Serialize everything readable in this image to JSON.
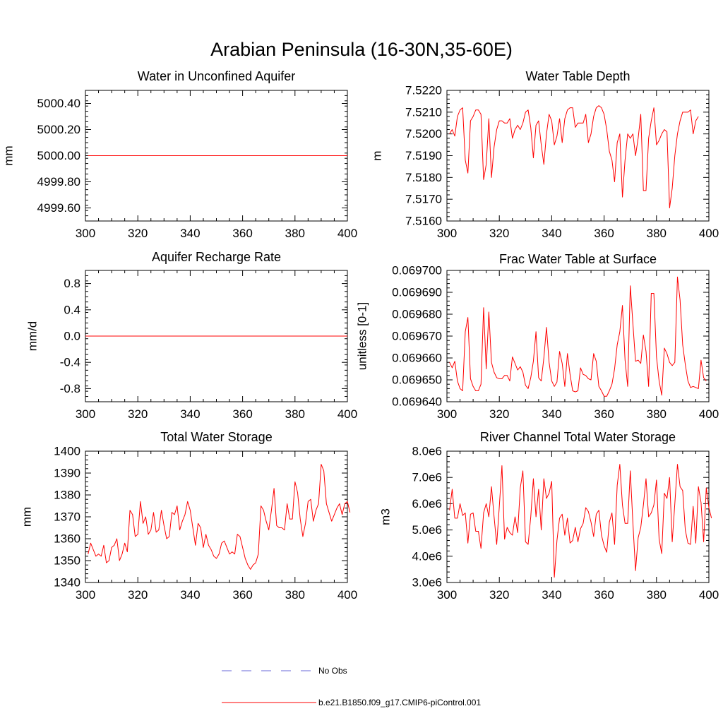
{
  "title": "Arabian Peninsula (16-30N,35-60E)",
  "colors": {
    "model": "#ff0000",
    "obs": "#6a6ad8",
    "frame": "#000000"
  },
  "legend": {
    "obs_label": "No Obs",
    "model_label": "b.e21.B1850.f09_g17.CMIP6-piControl.001"
  },
  "chart_data": [
    {
      "type": "line",
      "title": "Water in Unconfined Aquifer",
      "xlabel": "",
      "ylabel": "mm",
      "xlim": [
        300,
        400
      ],
      "ylim": [
        4999.5,
        5000.5
      ],
      "xticks": [
        300,
        320,
        340,
        360,
        380,
        400
      ],
      "xtick_labels": [
        "300",
        "320",
        "340",
        "360",
        "380",
        "400"
      ],
      "yticks": [
        4999.6,
        4999.8,
        5000.0,
        5000.2,
        5000.4
      ],
      "ytick_labels": [
        "4999.60",
        "4999.80",
        "5000.00",
        "5000.20",
        "5000.40"
      ],
      "x_start": 301,
      "series": [
        {
          "name": "b.e21.B1850.f09_g17.CMIP6-piControl.001",
          "values": [
            5000.0,
            5000.0
          ]
        }
      ]
    },
    {
      "type": "line",
      "title": "Water Table Depth",
      "xlabel": "",
      "ylabel": "m",
      "xlim": [
        300,
        400
      ],
      "ylim": [
        7.516,
        7.522
      ],
      "xticks": [
        300,
        320,
        340,
        360,
        380,
        400
      ],
      "xtick_labels": [
        "300",
        "320",
        "340",
        "360",
        "380",
        "400"
      ],
      "yticks": [
        7.516,
        7.517,
        7.518,
        7.519,
        7.52,
        7.521,
        7.522
      ],
      "ytick_labels": [
        "7.5160",
        "7.5170",
        "7.5180",
        "7.5190",
        "7.5200",
        "7.5210",
        "7.5220"
      ],
      "x_start": 301,
      "series": [
        {
          "name": "b.e21.B1850.f09_g17.CMIP6-piControl.001",
          "values": [
            7.52,
            7.5202,
            7.5199,
            7.5208,
            7.5211,
            7.5212,
            7.5188,
            7.5182,
            7.5206,
            7.5208,
            7.5211,
            7.5211,
            7.5209,
            7.5179,
            7.5186,
            7.5207,
            7.518,
            7.5194,
            7.5202,
            7.5206,
            7.5206,
            7.5205,
            7.5205,
            7.5207,
            7.5198,
            7.5202,
            7.5204,
            7.5202,
            7.5205,
            7.521,
            7.5211,
            7.5203,
            7.5189,
            7.5204,
            7.5206,
            7.5195,
            7.5186,
            7.52,
            7.5209,
            7.5206,
            7.5195,
            7.5199,
            7.5207,
            7.5196,
            7.5207,
            7.5211,
            7.5212,
            7.5212,
            7.5203,
            7.5205,
            7.5205,
            7.5205,
            7.5209,
            7.5196,
            7.52,
            7.5208,
            7.5212,
            7.5213,
            7.5212,
            7.5209,
            7.5202,
            7.5192,
            7.5188,
            7.5178,
            7.5196,
            7.52,
            7.5171,
            7.5188,
            7.52,
            7.5198,
            7.52,
            7.519,
            7.5198,
            7.5209,
            7.5174,
            7.5174,
            7.5198,
            7.5206,
            7.5212,
            7.5195,
            7.5197,
            7.52,
            7.5202,
            7.5201,
            7.5166,
            7.5175,
            7.519,
            7.52,
            7.5206,
            7.521,
            7.521,
            7.521,
            7.5211,
            7.52,
            7.5206,
            7.5208
          ]
        }
      ]
    },
    {
      "type": "line",
      "title": "Aquifer Recharge Rate",
      "xlabel": "",
      "ylabel": "mm/d",
      "xlim": [
        300,
        400
      ],
      "ylim": [
        -1.0,
        1.0
      ],
      "xticks": [
        300,
        320,
        340,
        360,
        380,
        400
      ],
      "xtick_labels": [
        "300",
        "320",
        "340",
        "360",
        "380",
        "400"
      ],
      "yticks": [
        -0.8,
        -0.4,
        0.0,
        0.4,
        0.8
      ],
      "ytick_labels": [
        "-0.8",
        "-0.4",
        "0.0",
        "0.4",
        "0.8"
      ],
      "x_start": 300,
      "series": [
        {
          "name": "b.e21.B1850.f09_g17.CMIP6-piControl.001",
          "values": [
            0.0,
            0.0
          ]
        }
      ]
    },
    {
      "type": "line",
      "title": "Frac Water Table at Surface",
      "xlabel": "",
      "ylabel": "unitless [0-1]",
      "xlim": [
        300,
        400
      ],
      "ylim": [
        0.06964,
        0.0697
      ],
      "xticks": [
        300,
        320,
        340,
        360,
        380,
        400
      ],
      "xtick_labels": [
        "300",
        "320",
        "340",
        "360",
        "380",
        "400"
      ],
      "yticks": [
        0.06964,
        0.06965,
        0.06966,
        0.06967,
        0.06968,
        0.06969,
        0.0697
      ],
      "ytick_labels": [
        "0.069640",
        "0.069650",
        "0.069660",
        "0.069670",
        "0.069680",
        "0.069690",
        "0.069700"
      ],
      "x_start": 301,
      "series": [
        {
          "name": "b.e21.B1850.f09_g17.CMIP6-piControl.001",
          "values": [
            0.069658,
            0.0696555,
            0.0696585,
            0.0696495,
            0.069646,
            0.069645,
            0.069672,
            0.0696785,
            0.0696505,
            0.069647,
            0.069645,
            0.069645,
            0.069648,
            0.069683,
            0.069655,
            0.069681,
            0.069658,
            0.0696535,
            0.069651,
            0.0696505,
            0.0696505,
            0.069652,
            0.069652,
            0.0696495,
            0.0696605,
            0.0696575,
            0.0696545,
            0.069656,
            0.0696535,
            0.0696475,
            0.069646,
            0.069651,
            0.0696585,
            0.069672,
            0.069651,
            0.0696495,
            0.06966,
            0.069674,
            0.069658,
            0.0696495,
            0.069647,
            0.069649,
            0.069663,
            0.0696575,
            0.069647,
            0.069662,
            0.0696525,
            0.069645,
            0.0696445,
            0.069645,
            0.0696555,
            0.0696525,
            0.069652,
            0.0696505,
            0.06965,
            0.069662,
            0.0696585,
            0.069647,
            0.069645,
            0.0696425,
            0.0696425,
            0.069645,
            0.069648,
            0.069655,
            0.069666,
            0.069672,
            0.069684,
            0.069659,
            0.069647,
            0.069693,
            0.0696755,
            0.0696585,
            0.069659,
            0.0696575,
            0.0696705,
            0.069663,
            0.069647,
            0.0696895,
            0.0696895,
            0.0696605,
            0.0696495,
            0.069643,
            0.0696645,
            0.069662,
            0.069658,
            0.0696565,
            0.069658,
            0.069697,
            0.0696865,
            0.069666,
            0.069657,
            0.0696495,
            0.0696465,
            0.069647,
            0.0696465,
            0.069646,
            0.069659,
            0.069651,
            0.0696495
          ]
        }
      ]
    },
    {
      "type": "line",
      "title": "Total Water Storage",
      "xlabel": "",
      "ylabel": "mm",
      "xlim": [
        300,
        400
      ],
      "ylim": [
        1340,
        1400
      ],
      "xticks": [
        300,
        320,
        340,
        360,
        380,
        400
      ],
      "xtick_labels": [
        "300",
        "320",
        "340",
        "360",
        "380",
        "400"
      ],
      "yticks": [
        1340,
        1350,
        1360,
        1370,
        1380,
        1390,
        1400
      ],
      "ytick_labels": [
        "1340",
        "1350",
        "1360",
        "1370",
        "1380",
        "1390",
        "1400"
      ],
      "x_start": 301,
      "series": [
        {
          "name": "b.e21.B1850.f09_g17.CMIP6-piControl.001",
          "values": [
            1353,
            1358,
            1355,
            1352,
            1353,
            1352,
            1357,
            1349,
            1350,
            1356,
            1357,
            1360,
            1350,
            1353,
            1358,
            1354,
            1373,
            1371,
            1361,
            1362,
            1377,
            1367,
            1370,
            1362,
            1364,
            1372,
            1363,
            1364,
            1373,
            1366,
            1360,
            1361,
            1372,
            1371,
            1375,
            1364,
            1368,
            1371,
            1377,
            1373,
            1365,
            1357,
            1367,
            1365,
            1356,
            1362,
            1357,
            1355,
            1352,
            1351,
            1353,
            1358,
            1359,
            1356,
            1353,
            1354,
            1353,
            1362,
            1361,
            1356,
            1351,
            1348,
            1346,
            1348,
            1349,
            1353,
            1375,
            1373,
            1368,
            1364,
            1373,
            1383,
            1366,
            1365,
            1365,
            1364,
            1376,
            1369,
            1369,
            1386,
            1381,
            1369,
            1361,
            1367,
            1377,
            1378,
            1368,
            1373,
            1376,
            1394,
            1391,
            1376,
            1372,
            1368,
            1371,
            1374,
            1376,
            1371,
            1376,
            1377,
            1372
          ]
        }
      ]
    },
    {
      "type": "line",
      "title": "River Channel Total Water Storage",
      "xlabel": "",
      "ylabel": "m3",
      "xlim": [
        300,
        400
      ],
      "ylim": [
        3000000,
        8000000
      ],
      "xticks": [
        300,
        320,
        340,
        360,
        380,
        400
      ],
      "xtick_labels": [
        "300",
        "320",
        "340",
        "360",
        "380",
        "400"
      ],
      "yticks": [
        3000000,
        4000000,
        5000000,
        6000000,
        7000000,
        8000000
      ],
      "ytick_labels": [
        "3.0e6",
        "4.0e6",
        "5.0e6",
        "6.0e6",
        "7.0e6",
        "8.0e6"
      ],
      "x_start": 301,
      "series": [
        {
          "name": "b.e21.B1850.f09_g17.CMIP6-piControl.001",
          "values": [
            5750000,
            6550000,
            5450000,
            5450000,
            6000000,
            5550000,
            5650000,
            4500000,
            5600000,
            5650000,
            4950000,
            4950000,
            4300000,
            5650000,
            6000000,
            5500000,
            6650000,
            5500000,
            4450000,
            5900000,
            7450000,
            4650000,
            5100000,
            4900000,
            4800000,
            5500000,
            4900000,
            6600000,
            7250000,
            4550000,
            4450000,
            5500000,
            6950000,
            5500000,
            6550000,
            5000000,
            6950000,
            6200000,
            6400000,
            6850000,
            3200000,
            4600000,
            5450000,
            5600000,
            4800000,
            5450000,
            4500000,
            4600000,
            5100000,
            4550000,
            5050000,
            5250000,
            5850000,
            5700000,
            5300000,
            4750000,
            5600000,
            5750000,
            4800000,
            4400000,
            4150000,
            5300000,
            5650000,
            4450000,
            6700000,
            7500000,
            5950000,
            5250000,
            5250000,
            7250000,
            5250000,
            3450000,
            4700000,
            5100000,
            5950000,
            6950000,
            5500000,
            5650000,
            5950000,
            6900000,
            4650000,
            4100000,
            6400000,
            6200000,
            7000000,
            4550000,
            6000000,
            7500000,
            6650000,
            6500000,
            5000000,
            4500000,
            4450000,
            5900000,
            4500000,
            6650000,
            6050000,
            4550000,
            6600000,
            5850000,
            5450000
          ]
        }
      ]
    }
  ]
}
